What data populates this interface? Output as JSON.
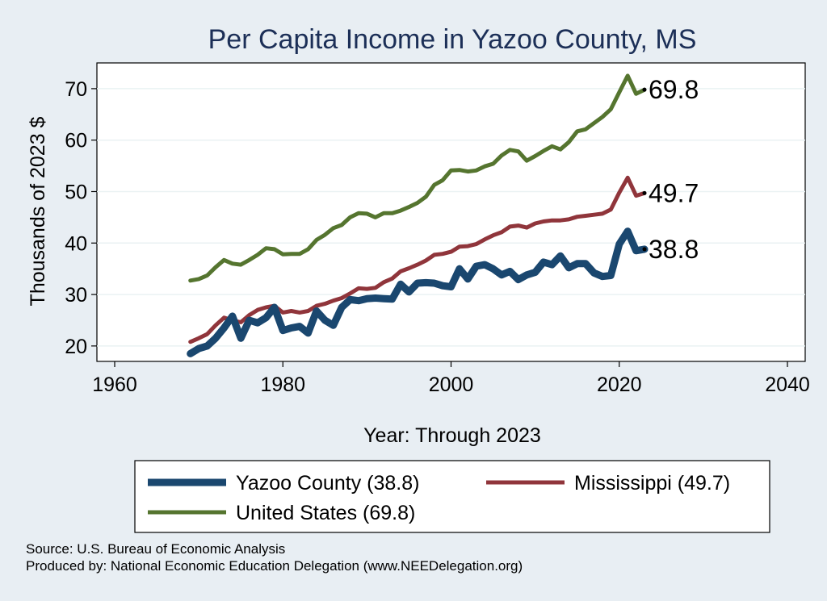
{
  "chart_data": {
    "type": "line",
    "title": "Per Capita Income in Yazoo County, MS",
    "xlabel": "Year: Through 2023",
    "ylabel": "Thousands of 2023 $",
    "xlim": [
      1960,
      2040
    ],
    "ylim": [
      17,
      75
    ],
    "xticks": [
      1960,
      1980,
      2000,
      2020,
      2040
    ],
    "yticks": [
      20,
      30,
      40,
      50,
      60,
      70
    ],
    "grid": true,
    "legend_position": "bottom",
    "x": [
      1969,
      1970,
      1971,
      1972,
      1973,
      1974,
      1975,
      1976,
      1977,
      1978,
      1979,
      1980,
      1981,
      1982,
      1983,
      1984,
      1985,
      1986,
      1987,
      1988,
      1989,
      1990,
      1991,
      1992,
      1993,
      1994,
      1995,
      1996,
      1997,
      1998,
      1999,
      2000,
      2001,
      2002,
      2003,
      2004,
      2005,
      2006,
      2007,
      2008,
      2009,
      2010,
      2011,
      2012,
      2013,
      2014,
      2015,
      2016,
      2017,
      2018,
      2019,
      2020,
      2021,
      2022,
      2023
    ],
    "series": [
      {
        "name": "Yazoo County (38.8)",
        "end_label": "38.8",
        "color": "#1a476f",
        "width": 9,
        "values": [
          18.5,
          19.5,
          20.0,
          21.5,
          23.5,
          25.8,
          21.5,
          25.0,
          24.5,
          25.5,
          27.5,
          23.0,
          23.5,
          23.8,
          22.5,
          26.8,
          25.0,
          24.0,
          27.5,
          29.0,
          28.8,
          29.2,
          29.3,
          29.2,
          29.1,
          32.0,
          30.5,
          32.2,
          32.3,
          32.2,
          31.7,
          31.5,
          35.0,
          33.0,
          35.5,
          35.8,
          35.0,
          33.8,
          34.5,
          32.9,
          33.8,
          34.3,
          36.3,
          35.8,
          37.5,
          35.2,
          36.0,
          36.0,
          34.2,
          33.5,
          33.7,
          39.8,
          42.3,
          38.5,
          38.8
        ]
      },
      {
        "name": "Mississippi (49.7)",
        "end_label": "49.7",
        "color": "#90353b",
        "width": 5,
        "values": [
          20.8,
          21.5,
          22.3,
          24.0,
          25.5,
          25.0,
          24.6,
          26.0,
          27.0,
          27.5,
          27.8,
          26.5,
          26.8,
          26.5,
          26.8,
          27.8,
          28.2,
          28.8,
          29.3,
          30.2,
          31.2,
          31.1,
          31.3,
          32.4,
          33.1,
          34.5,
          35.1,
          35.8,
          36.6,
          37.7,
          37.9,
          38.3,
          39.3,
          39.4,
          39.8,
          40.7,
          41.5,
          42.1,
          43.2,
          43.4,
          43.0,
          43.8,
          44.2,
          44.4,
          44.4,
          44.6,
          45.1,
          45.3,
          45.5,
          45.7,
          46.5,
          49.8,
          52.7,
          49.2,
          49.7
        ]
      },
      {
        "name": "United States (69.8)",
        "end_label": "69.8",
        "color": "#55752f",
        "width": 5,
        "values": [
          32.7,
          33.0,
          33.7,
          35.3,
          36.7,
          36.0,
          35.8,
          36.7,
          37.7,
          39.0,
          38.8,
          37.8,
          37.9,
          37.9,
          38.8,
          40.6,
          41.6,
          42.9,
          43.5,
          45.0,
          45.8,
          45.7,
          45.0,
          45.8,
          45.8,
          46.3,
          47.0,
          47.8,
          49.0,
          51.3,
          52.2,
          54.1,
          54.2,
          53.9,
          54.1,
          54.9,
          55.4,
          57.0,
          58.1,
          57.8,
          56.0,
          56.9,
          57.9,
          58.8,
          58.2,
          59.6,
          61.7,
          62.1,
          63.3,
          64.5,
          66.0,
          69.3,
          72.5,
          69.0,
          69.8
        ]
      }
    ]
  },
  "footer": {
    "source": "Source: U.S. Bureau of Economic Analysis",
    "produced_by": "Produced by: National Economic Education Delegation (www.NEEDelegation.org)"
  }
}
